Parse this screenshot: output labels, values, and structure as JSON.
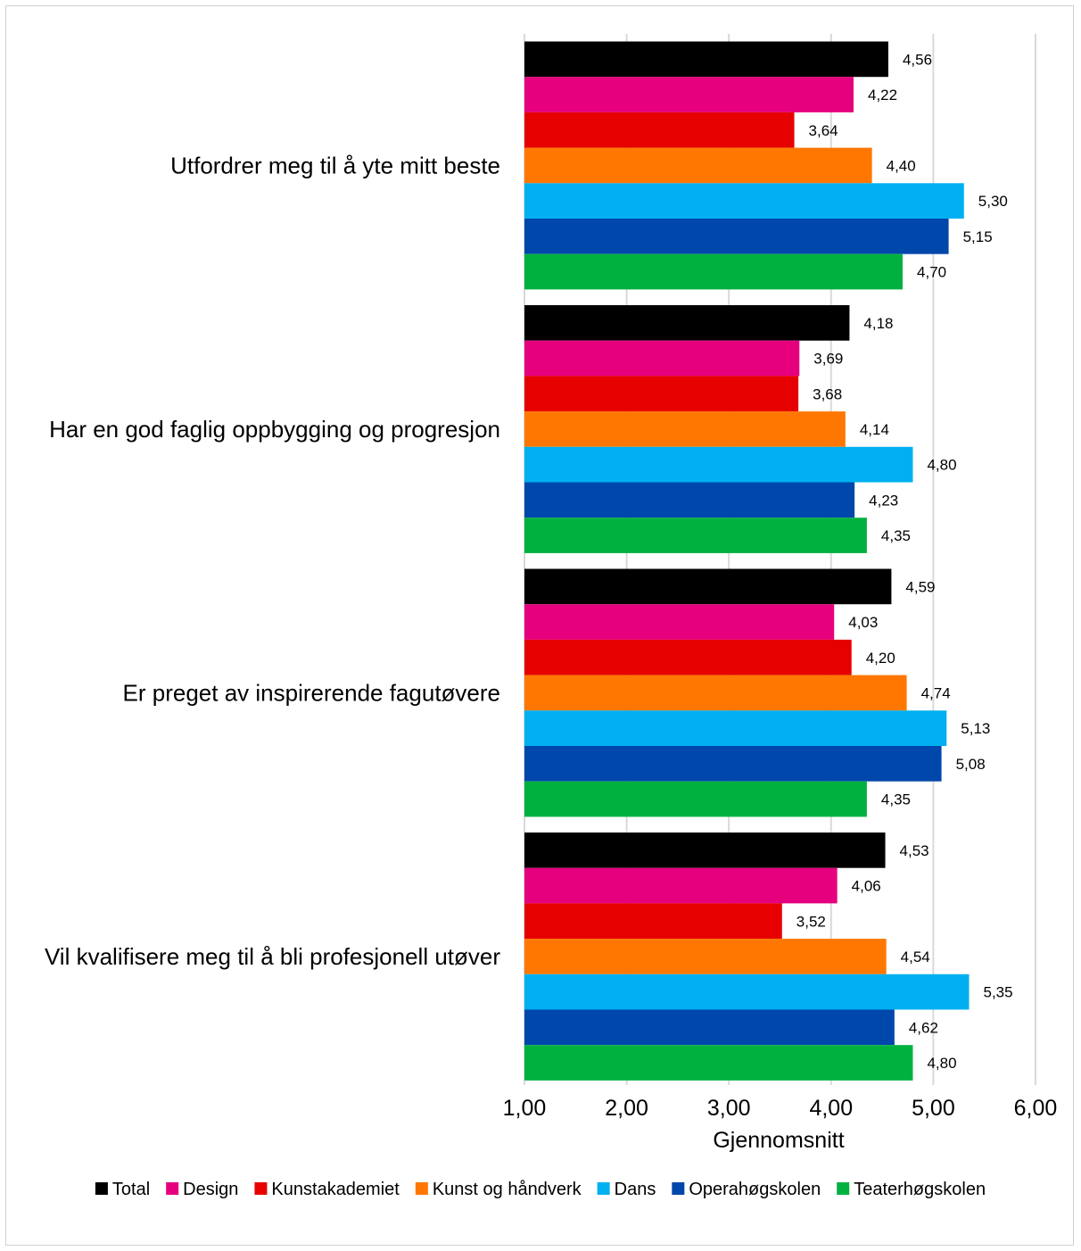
{
  "chart_data": {
    "type": "bar",
    "orientation": "horizontal",
    "title": "",
    "xlabel": "Gjennomsnitt",
    "ylabel": "",
    "xlim": [
      1,
      6
    ],
    "x_ticks": [
      1,
      2,
      3,
      4,
      5,
      6
    ],
    "x_tick_labels": [
      "1,00",
      "2,00",
      "3,00",
      "4,00",
      "5,00",
      "6,00"
    ],
    "grid": "vertical",
    "legend_position": "bottom",
    "categories": [
      "Utfordrer meg til å yte mitt beste",
      "Har en god faglig oppbygging og progresjon",
      "Er preget av inspirerende fagutøvere",
      "Vil kvalifisere meg til å bli profesjonell utøver"
    ],
    "series": [
      {
        "name": "Total",
        "color": "#000000",
        "values": [
          4.56,
          4.18,
          4.59,
          4.53
        ],
        "labels": [
          "4,56",
          "4,18",
          "4,59",
          "4,53"
        ]
      },
      {
        "name": "Design",
        "color": "#E6007E",
        "values": [
          4.22,
          3.69,
          4.03,
          4.06
        ],
        "labels": [
          "4,22",
          "3,69",
          "4,03",
          "4,06"
        ]
      },
      {
        "name": "Kunstakademiet",
        "color": "#E60000",
        "values": [
          3.64,
          3.68,
          4.2,
          3.52
        ],
        "labels": [
          "3,64",
          "3,68",
          "4,20",
          "3,52"
        ]
      },
      {
        "name": "Kunst og håndverk",
        "color": "#FF7700",
        "values": [
          4.4,
          4.14,
          4.74,
          4.54
        ],
        "labels": [
          "4,40",
          "4,14",
          "4,74",
          "4,54"
        ]
      },
      {
        "name": "Dans",
        "color": "#00B0F0",
        "values": [
          5.3,
          4.8,
          5.13,
          5.35
        ],
        "labels": [
          "5,30",
          "4,80",
          "5,13",
          "5,35"
        ]
      },
      {
        "name": "Operahøgskolen",
        "color": "#0047AB",
        "values": [
          5.15,
          4.23,
          5.08,
          4.62
        ],
        "labels": [
          "5,15",
          "4,23",
          "5,08",
          "4,62"
        ]
      },
      {
        "name": "Teaterhøgskolen",
        "color": "#00B140",
        "values": [
          4.7,
          4.35,
          4.35,
          4.8
        ],
        "labels": [
          "4,70",
          "4,35",
          "4,35",
          "4,80"
        ]
      }
    ]
  }
}
